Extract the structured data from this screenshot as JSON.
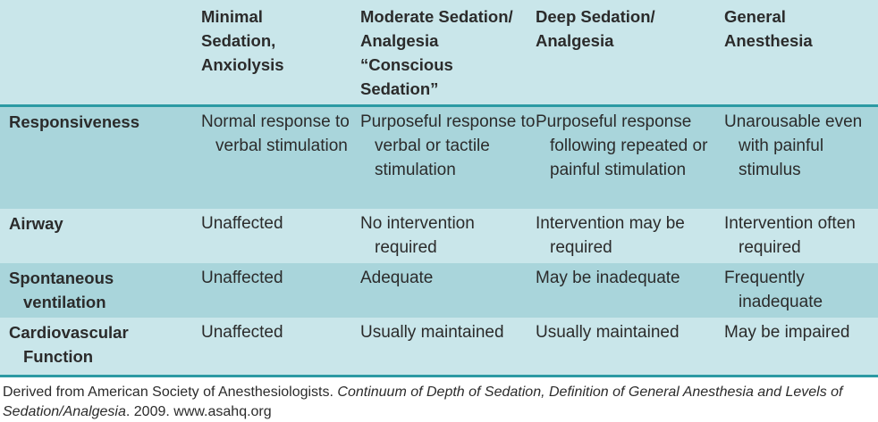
{
  "table": {
    "headers": [
      "",
      "Minimal Sedation, Anxiolysis",
      "Moderate Sedation/ Analgesia “Conscious Sedation”",
      "Deep Sedation/ Analgesia",
      "General Anesthesia"
    ],
    "header_lines": {
      "h1": [
        "Minimal",
        "Sedation,",
        "Anxiolysis"
      ],
      "h2": [
        "Moderate Sedation/",
        "Analgesia",
        "“Conscious",
        "Sedation”"
      ],
      "h3": [
        "Deep Sedation/",
        "Analgesia"
      ],
      "h4": [
        "General",
        "Anesthesia"
      ]
    },
    "rows": [
      {
        "label": "Responsiveness",
        "minimal": "Normal response to verbal stimulation",
        "moderate": "Purposeful response to verbal or tactile stimulation",
        "deep": "Purposeful response following repeated or painful stimulation",
        "general": "Unarousable even with painful stimulus"
      },
      {
        "label": "Airway",
        "minimal": "Unaffected",
        "moderate": "No intervention required",
        "deep": "Intervention may be required",
        "general": "Intervention often required"
      },
      {
        "label": "Spontaneous ventilation",
        "minimal": "Unaffected",
        "moderate": "Adequate",
        "deep": "May be inadequate",
        "general": "Frequently inadequate"
      },
      {
        "label": "Cardiovascular Function",
        "minimal": "Unaffected",
        "moderate": "Usually maintained",
        "deep": "Usually maintained",
        "general": "May be impaired"
      }
    ],
    "colors": {
      "header_bg": "#c9e6ea",
      "row_dark": "#a9d5db",
      "row_light": "#c9e6ea",
      "rule": "#2c9aa3"
    }
  },
  "footnote": {
    "prefix": "Derived from American Society of Anesthesiologists. ",
    "title": "Continuum of Depth of Sedation, Definition of General Anesthesia and Levels of Sedation/Analgesia",
    "suffix": ". 2009. www.asahq.org"
  }
}
